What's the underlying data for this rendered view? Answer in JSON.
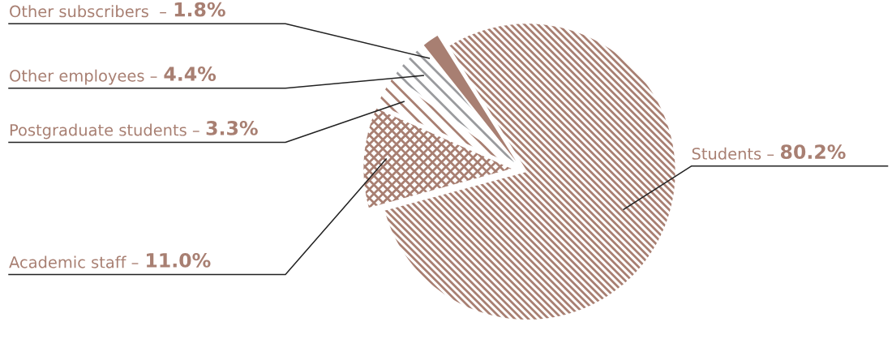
{
  "chart_data": {
    "type": "pie",
    "categories": [
      "Other subscribers  –",
      "Other employees –",
      "Postgraduate students –",
      "Academic staff –",
      "Students –"
    ],
    "values": [
      1.8,
      4.4,
      3.3,
      11.0,
      80.2
    ],
    "value_labels": [
      "1.8%",
      "4.4%",
      "3.3%",
      "11.0%",
      "80.2%"
    ],
    "colors": [
      "#a87f72",
      "#9a9b9e",
      "#a87f72",
      "#a87f72",
      "#a87f72"
    ],
    "legend": false
  }
}
